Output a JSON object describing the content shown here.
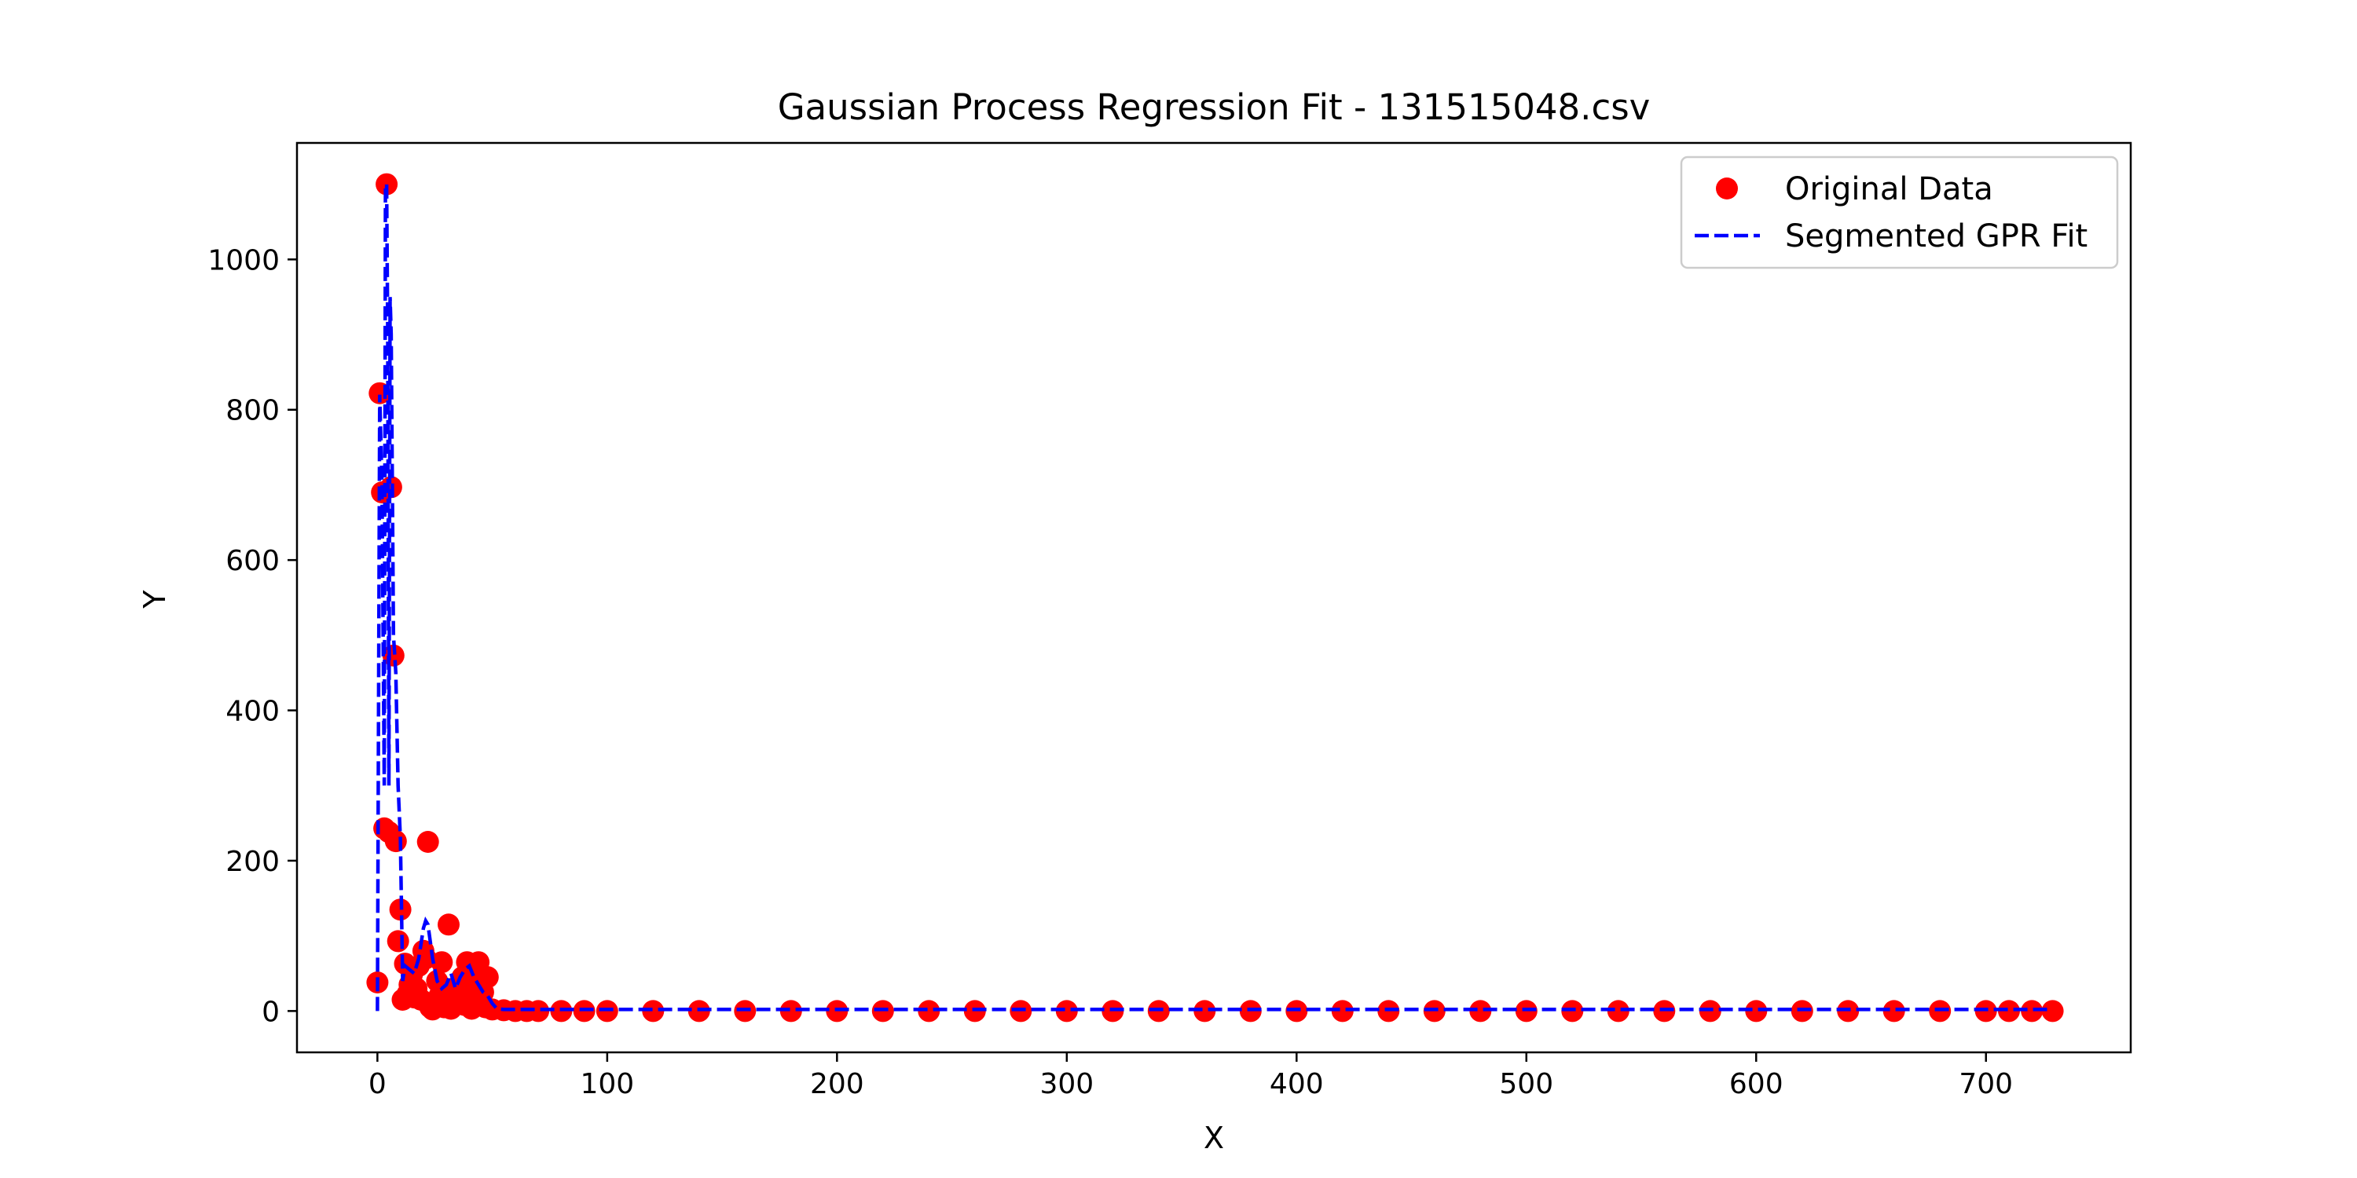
{
  "chart_data": {
    "type": "scatter",
    "title": "Gaussian Process Regression Fit - 131515048.csv",
    "xlabel": "X",
    "ylabel": "Y",
    "xlim": [
      -35,
      763
    ],
    "ylim": [
      -55,
      1155
    ],
    "xticks": [
      0,
      100,
      200,
      300,
      400,
      500,
      600,
      700
    ],
    "yticks": [
      0,
      200,
      400,
      600,
      800,
      1000
    ],
    "grid": false,
    "legend": {
      "placement": "upper right",
      "entries": [
        {
          "label": "Original Data",
          "marker": "circle",
          "color": "#ff0000"
        },
        {
          "label": "Segmented GPR Fit",
          "line": "dashed",
          "color": "#0000ff"
        }
      ]
    },
    "series": [
      {
        "name": "Original Data",
        "kind": "scatter",
        "color": "#ff0000",
        "points": [
          [
            0,
            38
          ],
          [
            1,
            822
          ],
          [
            2,
            690
          ],
          [
            3,
            243
          ],
          [
            4,
            1100
          ],
          [
            5,
            238
          ],
          [
            6,
            697
          ],
          [
            7,
            473
          ],
          [
            8,
            226
          ],
          [
            9,
            93
          ],
          [
            10,
            135
          ],
          [
            11,
            15
          ],
          [
            12,
            63
          ],
          [
            13,
            22
          ],
          [
            14,
            35
          ],
          [
            15,
            48
          ],
          [
            16,
            18
          ],
          [
            17,
            30
          ],
          [
            18,
            60
          ],
          [
            19,
            15
          ],
          [
            20,
            80
          ],
          [
            21,
            70
          ],
          [
            22,
            225
          ],
          [
            23,
            5
          ],
          [
            24,
            2
          ],
          [
            25,
            10
          ],
          [
            26,
            40
          ],
          [
            27,
            20
          ],
          [
            28,
            65
          ],
          [
            29,
            5
          ],
          [
            30,
            12
          ],
          [
            31,
            115
          ],
          [
            32,
            3
          ],
          [
            33,
            30
          ],
          [
            34,
            25
          ],
          [
            35,
            18
          ],
          [
            36,
            22
          ],
          [
            37,
            45
          ],
          [
            38,
            8
          ],
          [
            39,
            65
          ],
          [
            40,
            20
          ],
          [
            41,
            3
          ],
          [
            42,
            35
          ],
          [
            43,
            50
          ],
          [
            44,
            65
          ],
          [
            45,
            10
          ],
          [
            46,
            25
          ],
          [
            47,
            5
          ],
          [
            48,
            45
          ],
          [
            50,
            2
          ],
          [
            55,
            1
          ],
          [
            60,
            0
          ],
          [
            65,
            0
          ],
          [
            70,
            0
          ],
          [
            80,
            0
          ],
          [
            90,
            0
          ],
          [
            100,
            0
          ],
          [
            120,
            0
          ],
          [
            140,
            0
          ],
          [
            160,
            0
          ],
          [
            180,
            0
          ],
          [
            200,
            0
          ],
          [
            220,
            0
          ],
          [
            240,
            0
          ],
          [
            260,
            0
          ],
          [
            280,
            0
          ],
          [
            300,
            0
          ],
          [
            320,
            0
          ],
          [
            340,
            0
          ],
          [
            360,
            0
          ],
          [
            380,
            0
          ],
          [
            400,
            0
          ],
          [
            420,
            0
          ],
          [
            440,
            0
          ],
          [
            460,
            0
          ],
          [
            480,
            0
          ],
          [
            500,
            0
          ],
          [
            520,
            0
          ],
          [
            540,
            0
          ],
          [
            560,
            0
          ],
          [
            580,
            0
          ],
          [
            600,
            0
          ],
          [
            620,
            0
          ],
          [
            640,
            0
          ],
          [
            660,
            0
          ],
          [
            680,
            0
          ],
          [
            700,
            0
          ],
          [
            710,
            0
          ],
          [
            720,
            0
          ],
          [
            729,
            0
          ]
        ]
      },
      {
        "name": "Segmented GPR Fit",
        "kind": "line",
        "color": "#0000ff",
        "points": [
          [
            0,
            0
          ],
          [
            1,
            820
          ],
          [
            2,
            700
          ],
          [
            3,
            300
          ],
          [
            3.5,
            1100
          ],
          [
            4,
            1100
          ],
          [
            4.5,
            900
          ],
          [
            5,
            300
          ],
          [
            5.5,
            950
          ],
          [
            6,
            900
          ],
          [
            6.5,
            700
          ],
          [
            7,
            500
          ],
          [
            8,
            450
          ],
          [
            9,
            300
          ],
          [
            10,
            230
          ],
          [
            11,
            40
          ],
          [
            12,
            60
          ],
          [
            14,
            55
          ],
          [
            16,
            50
          ],
          [
            18,
            70
          ],
          [
            20,
            110
          ],
          [
            21,
            120
          ],
          [
            22,
            115
          ],
          [
            24,
            70
          ],
          [
            26,
            40
          ],
          [
            28,
            30
          ],
          [
            30,
            35
          ],
          [
            32,
            50
          ],
          [
            34,
            30
          ],
          [
            36,
            45
          ],
          [
            38,
            55
          ],
          [
            40,
            60
          ],
          [
            42,
            45
          ],
          [
            44,
            35
          ],
          [
            46,
            25
          ],
          [
            48,
            20
          ],
          [
            50,
            10
          ],
          [
            52,
            3
          ],
          [
            55,
            2
          ],
          [
            60,
            2
          ],
          [
            100,
            2
          ],
          [
            200,
            2
          ],
          [
            300,
            2
          ],
          [
            400,
            2
          ],
          [
            500,
            2
          ],
          [
            600,
            2
          ],
          [
            700,
            2
          ],
          [
            729,
            2
          ]
        ]
      }
    ]
  }
}
